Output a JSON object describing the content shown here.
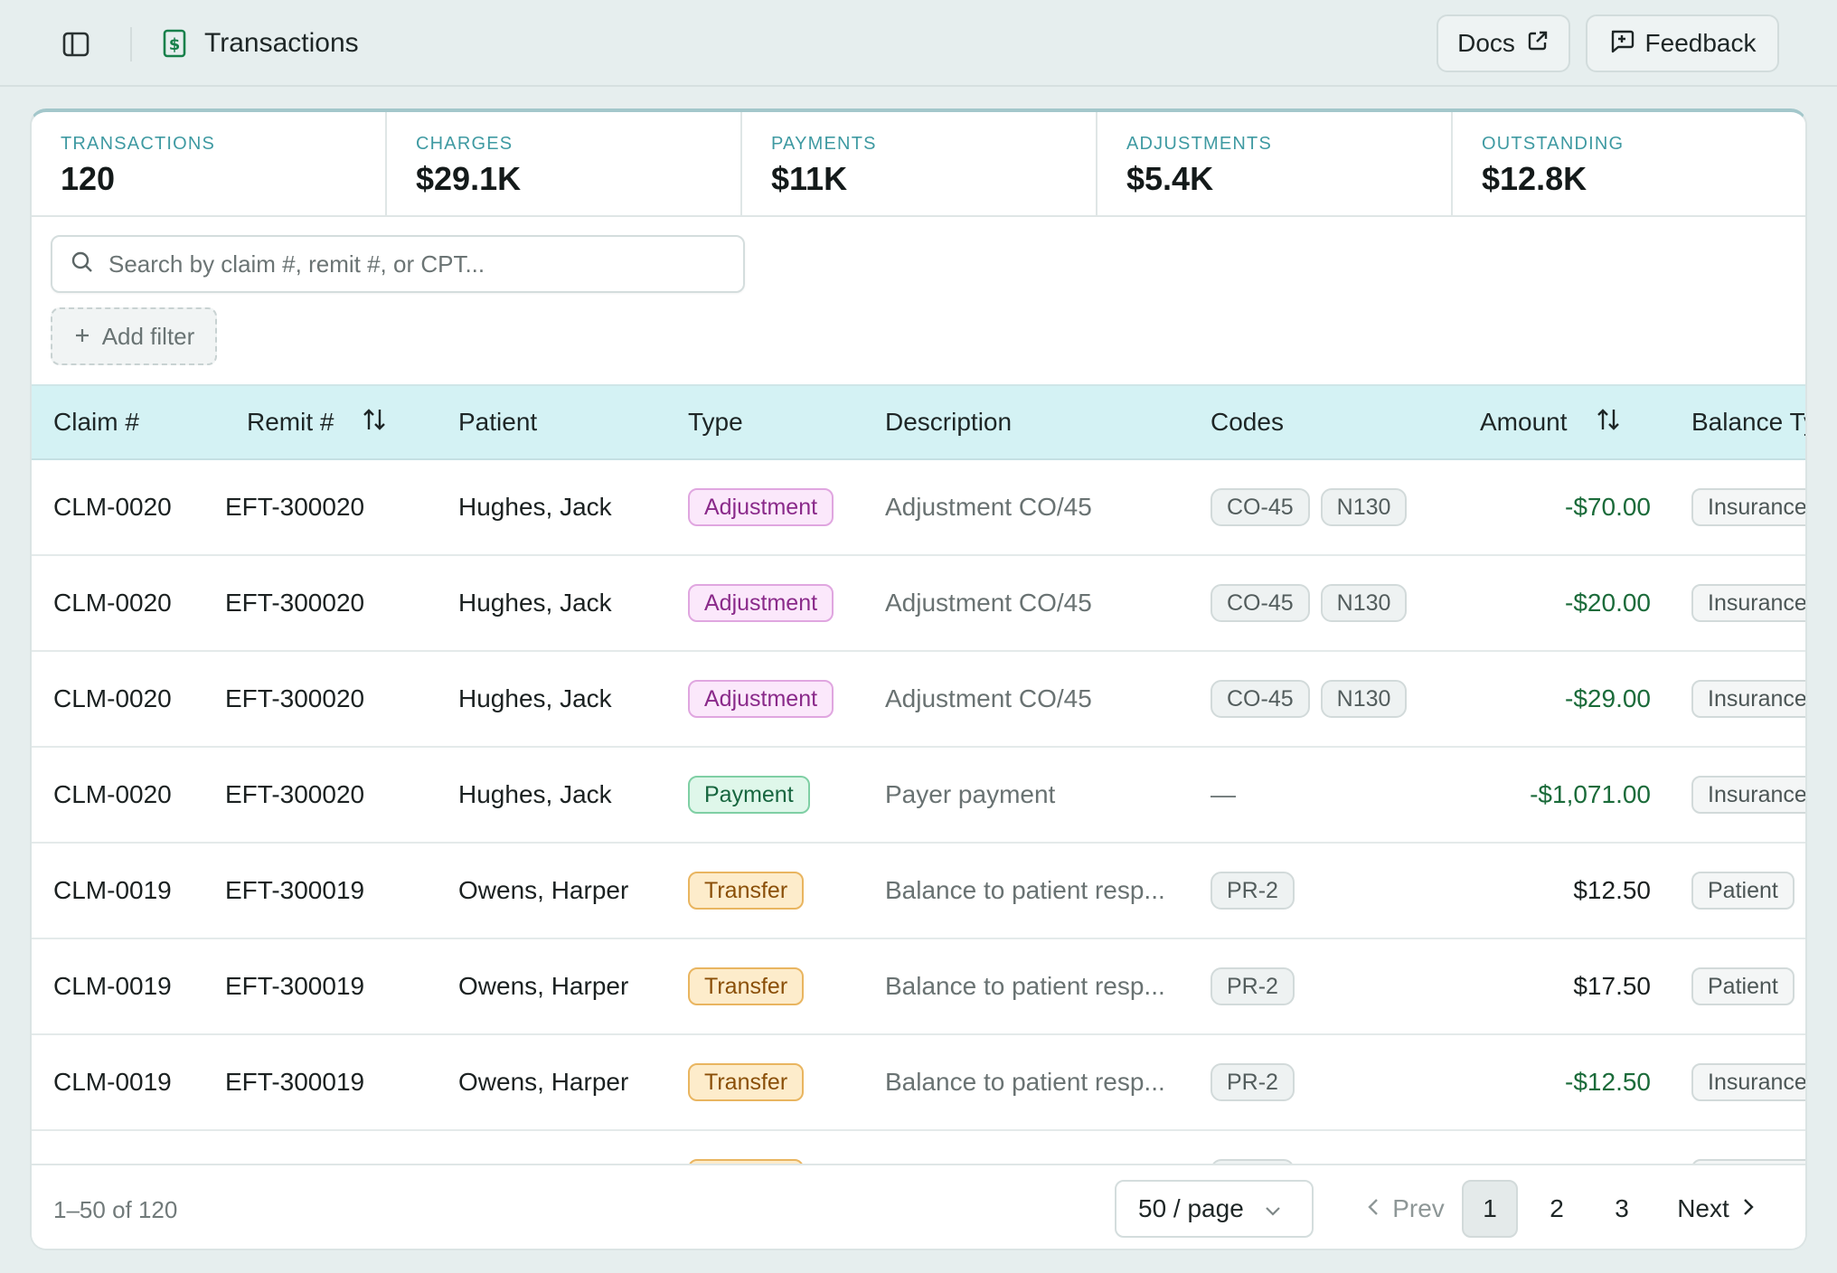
{
  "header": {
    "title": "Transactions",
    "docs_label": "Docs",
    "feedback_label": "Feedback"
  },
  "stats": [
    {
      "label": "TRANSACTIONS",
      "value": "120"
    },
    {
      "label": "CHARGES",
      "value": "$29.1K"
    },
    {
      "label": "PAYMENTS",
      "value": "$11K"
    },
    {
      "label": "ADJUSTMENTS",
      "value": "$5.4K"
    },
    {
      "label": "OUTSTANDING",
      "value": "$12.8K"
    }
  ],
  "search": {
    "placeholder": "Search by claim #, remit #, or CPT..."
  },
  "filters": {
    "add_label": "Add filter"
  },
  "table": {
    "columns": [
      "Claim #",
      "Remit #",
      "Patient",
      "Type",
      "Description",
      "Codes",
      "Amount",
      "Balance Ty"
    ],
    "rows": [
      {
        "claim": "CLM-0020",
        "remit": "EFT-300020",
        "patient": "Hughes, Jack",
        "type": "Adjustment",
        "description": "Adjustment CO/45",
        "codes": [
          "CO-45",
          "N130"
        ],
        "amount": "-$70.00",
        "balance": "Insurance"
      },
      {
        "claim": "CLM-0020",
        "remit": "EFT-300020",
        "patient": "Hughes, Jack",
        "type": "Adjustment",
        "description": "Adjustment CO/45",
        "codes": [
          "CO-45",
          "N130"
        ],
        "amount": "-$20.00",
        "balance": "Insurance"
      },
      {
        "claim": "CLM-0020",
        "remit": "EFT-300020",
        "patient": "Hughes, Jack",
        "type": "Adjustment",
        "description": "Adjustment CO/45",
        "codes": [
          "CO-45",
          "N130"
        ],
        "amount": "-$29.00",
        "balance": "Insurance"
      },
      {
        "claim": "CLM-0020",
        "remit": "EFT-300020",
        "patient": "Hughes, Jack",
        "type": "Payment",
        "description": "Payer payment",
        "codes": [],
        "amount": "-$1,071.00",
        "balance": "Insurance"
      },
      {
        "claim": "CLM-0019",
        "remit": "EFT-300019",
        "patient": "Owens, Harper",
        "type": "Transfer",
        "description": "Balance to patient resp...",
        "codes": [
          "PR-2"
        ],
        "amount": "$12.50",
        "balance": "Patient"
      },
      {
        "claim": "CLM-0019",
        "remit": "EFT-300019",
        "patient": "Owens, Harper",
        "type": "Transfer",
        "description": "Balance to patient resp...",
        "codes": [
          "PR-2"
        ],
        "amount": "$17.50",
        "balance": "Patient"
      },
      {
        "claim": "CLM-0019",
        "remit": "EFT-300019",
        "patient": "Owens, Harper",
        "type": "Transfer",
        "description": "Balance to patient resp...",
        "codes": [
          "PR-2"
        ],
        "amount": "-$12.50",
        "balance": "Insurance"
      }
    ],
    "empty_codes": "—"
  },
  "pagination": {
    "range_text": "1–50 of 120",
    "page_size": "50 / page",
    "prev_label": "Prev",
    "next_label": "Next",
    "pages": [
      "1",
      "2",
      "3"
    ],
    "current_page": "1"
  },
  "colors": {
    "accent": "#3f9aa2",
    "header_bg": "#d4f2f4",
    "negative_amount": "#1b6b3a"
  }
}
